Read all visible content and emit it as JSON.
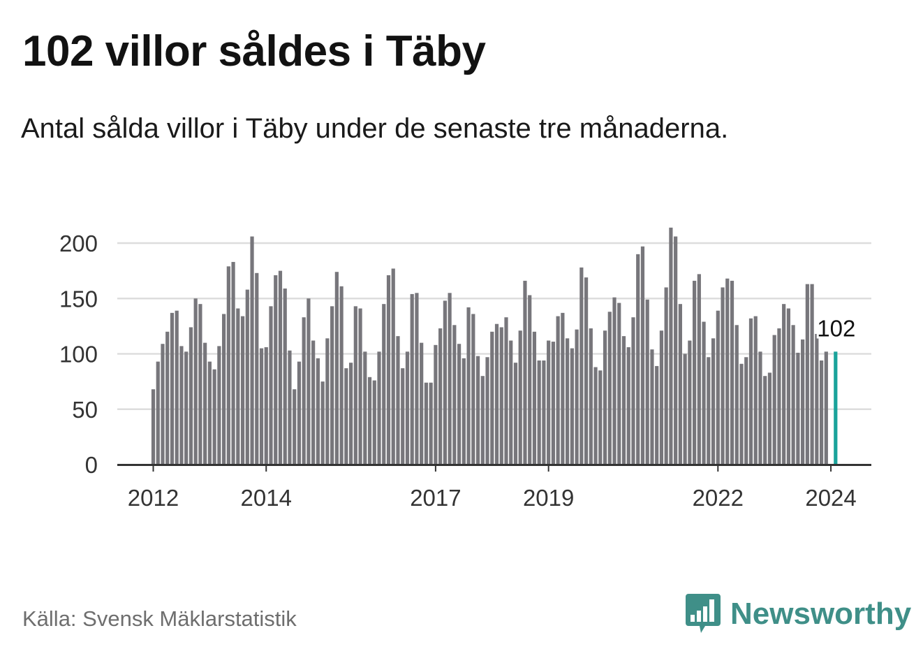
{
  "header": {
    "title": "102 villor såldes i Täby",
    "subtitle": "Antal sålda villor i Täby under de senaste tre månaderna."
  },
  "footer": {
    "source": "Källa: Svensk Mäklarstatistik",
    "brand": "Newsworthy"
  },
  "colors": {
    "bar": "#77767b",
    "highlight": "#1aa39b",
    "grid": "#dddddd",
    "axis": "#333333",
    "brand": "#3f8f88"
  },
  "icons": {
    "logo": "bar-chart-speech-bubble-icon"
  },
  "chart_data": {
    "type": "bar",
    "title": "102 villor såldes i Täby",
    "xlabel": "",
    "ylabel": "",
    "ylim": [
      0,
      200
    ],
    "yticks": [
      0,
      50,
      100,
      150,
      200
    ],
    "grid": true,
    "start_period": "2012-01",
    "xticks": [
      {
        "index": 0,
        "label": "2012"
      },
      {
        "index": 24,
        "label": "2014"
      },
      {
        "index": 60,
        "label": "2017"
      },
      {
        "index": 84,
        "label": "2019"
      },
      {
        "index": 120,
        "label": "2022"
      },
      {
        "index": 144,
        "label": "2024"
      }
    ],
    "highlight": {
      "index": 145,
      "value": 102,
      "label": "102"
    },
    "values": [
      68,
      93,
      109,
      120,
      137,
      139,
      107,
      102,
      124,
      150,
      145,
      110,
      93,
      86,
      107,
      136,
      179,
      183,
      141,
      134,
      158,
      206,
      173,
      105,
      106,
      143,
      171,
      175,
      159,
      103,
      68,
      93,
      133,
      150,
      112,
      96,
      75,
      114,
      143,
      174,
      161,
      87,
      92,
      143,
      141,
      102,
      79,
      76,
      102,
      145,
      171,
      177,
      116,
      87,
      102,
      154,
      155,
      110,
      74,
      74,
      108,
      123,
      148,
      155,
      126,
      109,
      96,
      142,
      136,
      98,
      80,
      97,
      120,
      127,
      124,
      133,
      112,
      92,
      121,
      166,
      153,
      120,
      94,
      94,
      112,
      111,
      134,
      137,
      114,
      105,
      122,
      178,
      169,
      123,
      88,
      85,
      121,
      138,
      151,
      146,
      116,
      106,
      133,
      190,
      197,
      149,
      104,
      89,
      121,
      160,
      214,
      206,
      145,
      100,
      112,
      166,
      172,
      129,
      97,
      114,
      139,
      160,
      168,
      166,
      126,
      91,
      97,
      132,
      134,
      102,
      80,
      83,
      117,
      123,
      145,
      141,
      126,
      101,
      113,
      163,
      163,
      118,
      94,
      102
    ]
  }
}
